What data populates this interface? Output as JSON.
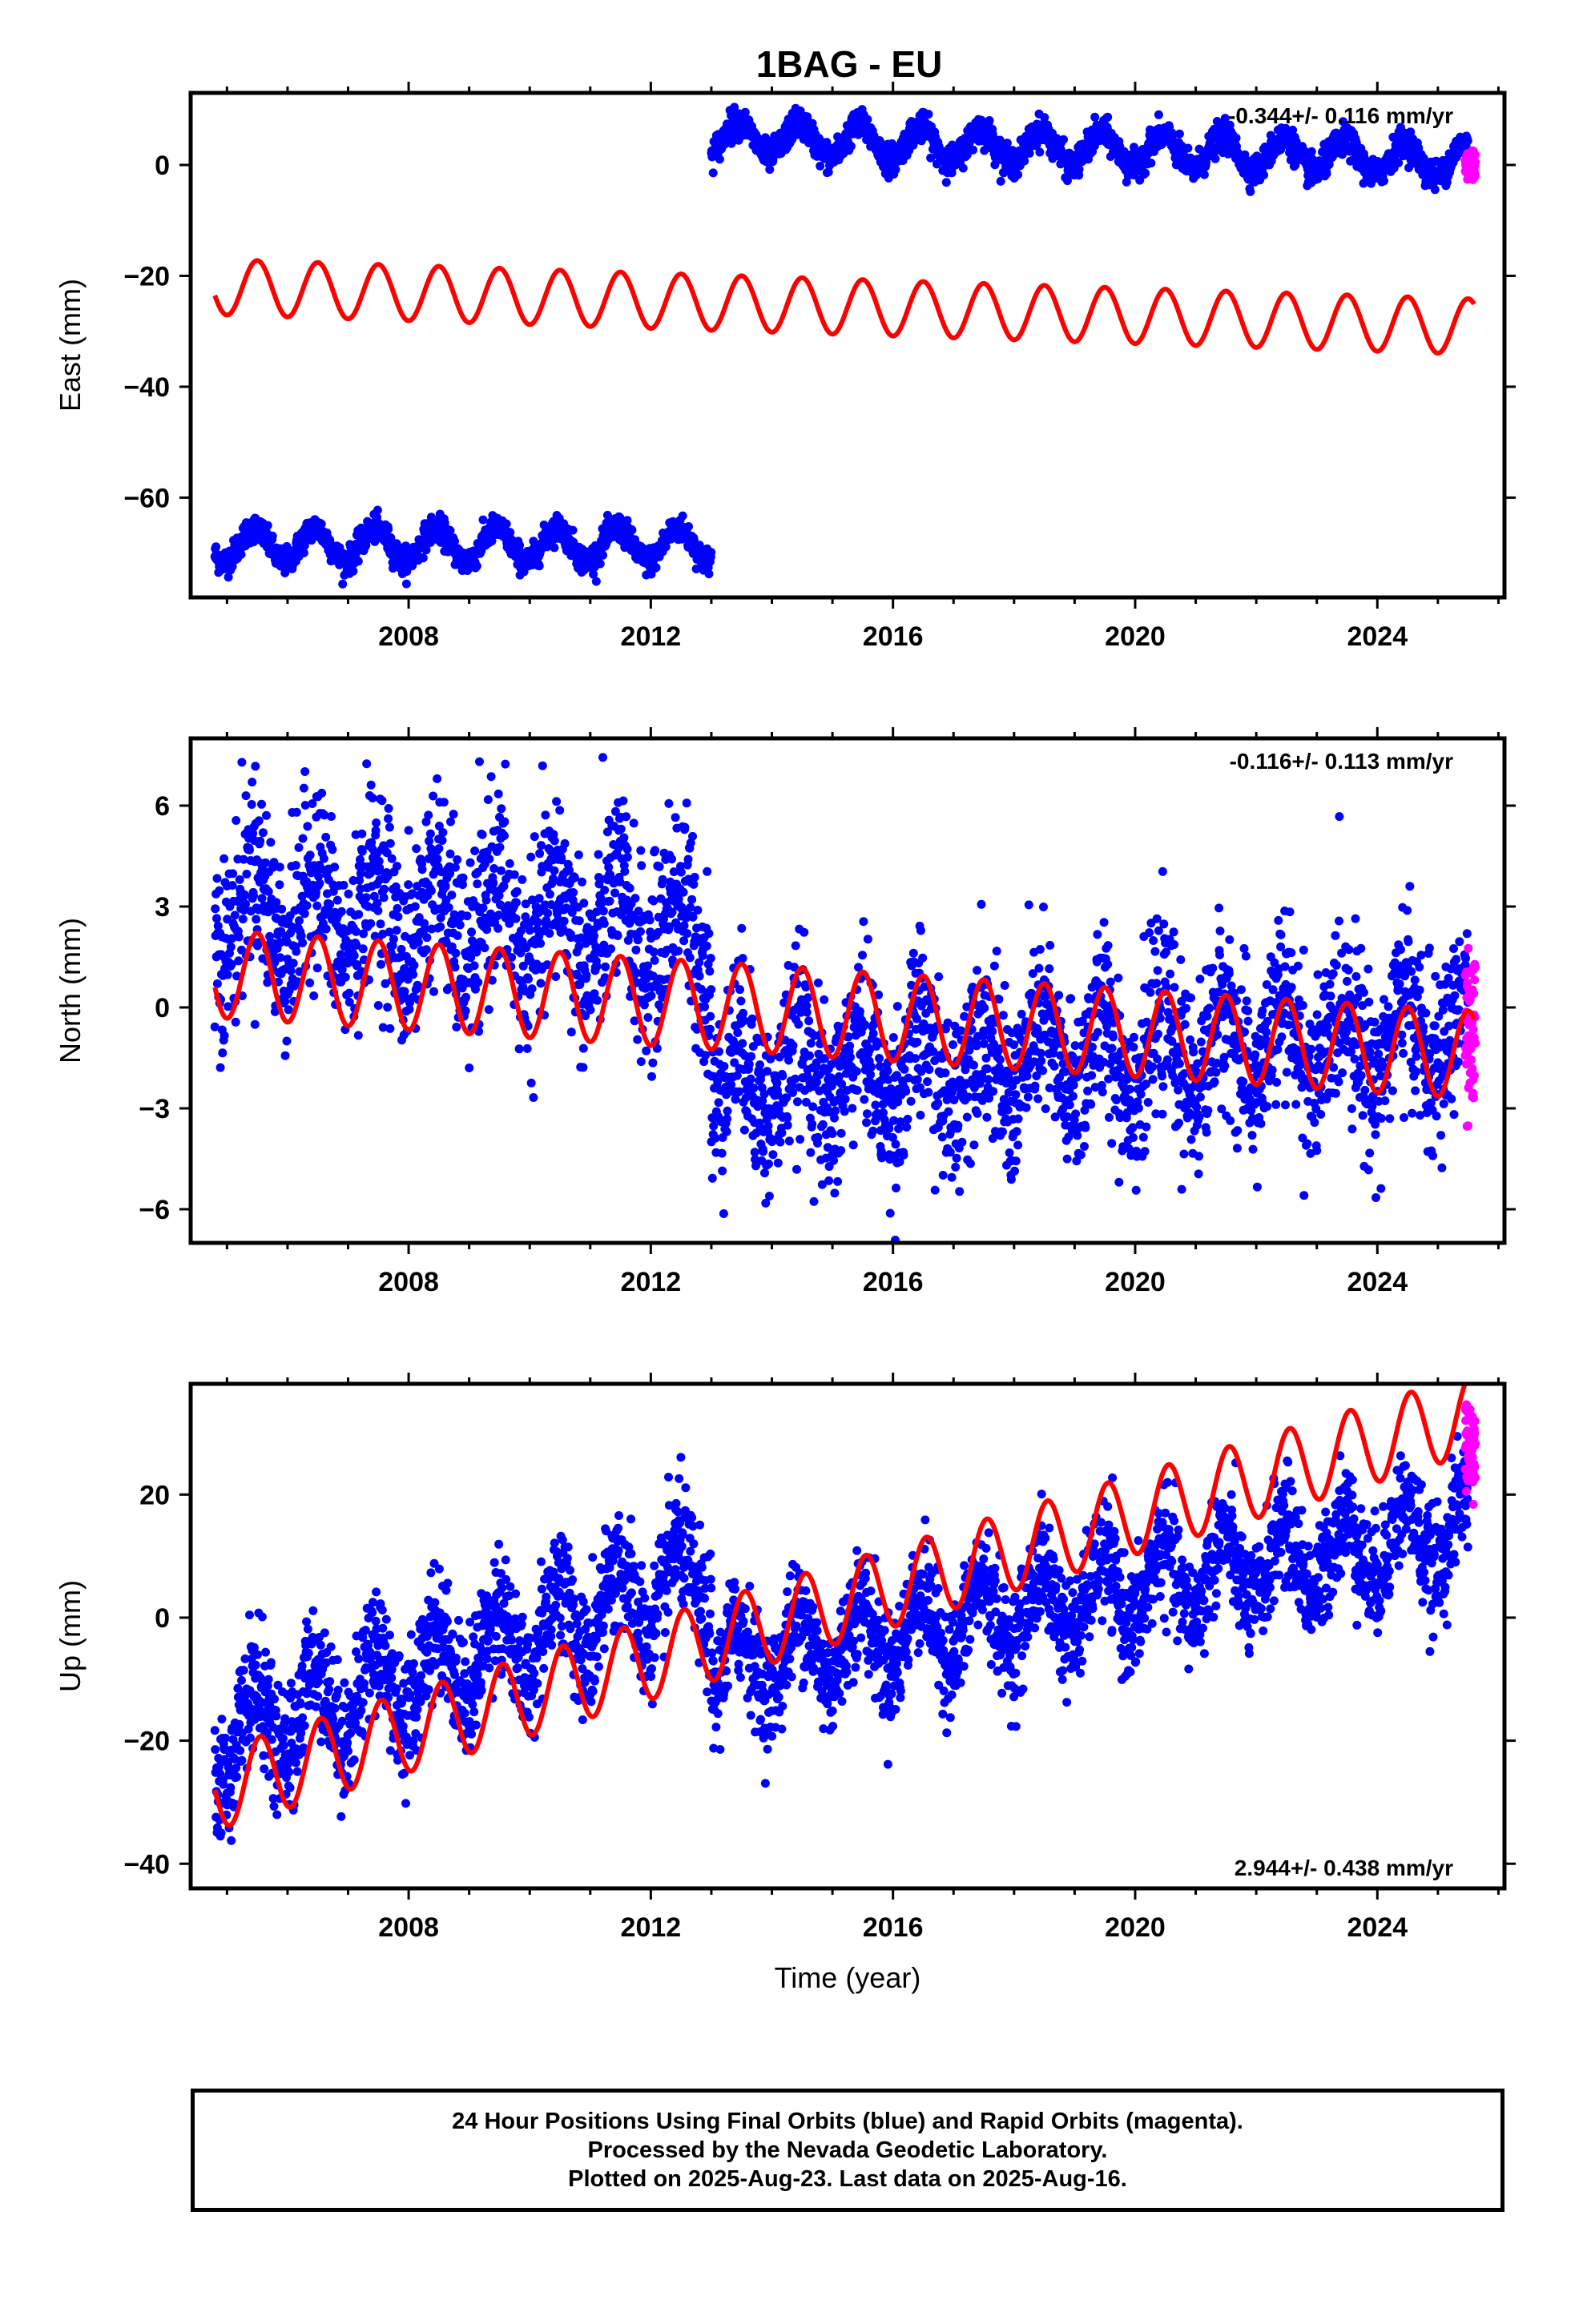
{
  "title": "1BAG - EU",
  "colors": {
    "final": "#0000ff",
    "rapid": "#ff00ff",
    "model": "#ff0000"
  },
  "caption": {
    "line1": "24 Hour Positions Using Final Orbits (blue) and Rapid Orbits (magenta).",
    "line2": "Processed by the Nevada Geodetic Laboratory.",
    "line3": "Plotted on 2025-Aug-23. Last data on 2025-Aug-16."
  },
  "chart_data": [
    {
      "type": "scatter",
      "ylabel": "East (mm)",
      "xlim": [
        2004.4,
        2026.1
      ],
      "ylim": [
        -78,
        13
      ],
      "yticks": [
        0,
        -20,
        -40,
        -60
      ],
      "yticklabels": [
        "0",
        "−20",
        "−40",
        "−60"
      ],
      "xticks": [
        2008,
        2012,
        2016,
        2020,
        2024
      ],
      "xticklabels": [
        "2008",
        "2012",
        "2016",
        "2020",
        "2024"
      ],
      "rate": "-0.344+/- 0.116 mm/yr",
      "rate_position": "top-right",
      "series": [
        {
          "role": "final orbits",
          "color": "blue",
          "segments": [
            {
              "start": 2004.8,
              "end": 2013.0,
              "offset": -68.5,
              "amplitude": 3.0,
              "noise": 1.2,
              "slope": 0.0
            },
            {
              "start": 2013.0,
              "end": 2025.5,
              "offset": 5.0,
              "amplitude": 3.0,
              "noise": 1.3,
              "slope": -0.34
            }
          ]
        },
        {
          "role": "rapid orbits",
          "color": "magenta",
          "segments": [
            {
              "start": 2025.45,
              "end": 2025.62,
              "offset": 0.0,
              "amplitude": 0.0,
              "noise": 1.5,
              "slope": 0.0
            }
          ]
        },
        {
          "role": "model",
          "color": "red",
          "x_start": 2004.8,
          "x_end": 2025.6,
          "offset": -22.0,
          "slope": -0.344,
          "amplitude": 5.0,
          "phase": 0.25
        }
      ]
    },
    {
      "type": "scatter",
      "ylabel": "North (mm)",
      "xlim": [
        2004.4,
        2026.1
      ],
      "ylim": [
        -7,
        8
      ],
      "yticks": [
        6,
        3,
        0,
        -3,
        -6
      ],
      "yticklabels": [
        "6",
        "3",
        "0",
        "−3",
        "−6"
      ],
      "xticks": [
        2008,
        2012,
        2016,
        2020,
        2024
      ],
      "xticklabels": [
        "2008",
        "2012",
        "2016",
        "2020",
        "2024"
      ],
      "rate": "-0.116+/- 0.113 mm/yr",
      "rate_position": "top-right",
      "series": [
        {
          "role": "final orbits",
          "color": "blue",
          "segments": [
            {
              "start": 2004.8,
              "end": 2013.0,
              "offset": 3.0,
              "amplitude": 1.3,
              "noise": 1.4,
              "slope": -0.1
            },
            {
              "start": 2013.0,
              "end": 2025.5,
              "offset": -2.2,
              "amplitude": 1.2,
              "noise": 1.3,
              "slope": 0.12
            }
          ]
        },
        {
          "role": "rapid orbits",
          "color": "magenta",
          "segments": [
            {
              "start": 2025.45,
              "end": 2025.62,
              "offset": -1.0,
              "amplitude": 0.0,
              "noise": 1.2,
              "slope": 0.0
            }
          ]
        },
        {
          "role": "model",
          "color": "red",
          "x_start": 2004.8,
          "x_end": 2025.6,
          "offset": 1.0,
          "slope": -0.116,
          "amplitude": 1.3,
          "phase": 0.25
        }
      ]
    },
    {
      "type": "scatter",
      "ylabel": "Up (mm)",
      "xlabel": "Time (year)",
      "xlim": [
        2004.4,
        2026.1
      ],
      "ylim": [
        -44,
        38
      ],
      "yticks": [
        20,
        0,
        -20,
        -40
      ],
      "yticklabels": [
        "20",
        "0",
        "−20",
        "−40"
      ],
      "xticks": [
        2008,
        2012,
        2016,
        2020,
        2024
      ],
      "xticklabels": [
        "2008",
        "2012",
        "2016",
        "2020",
        "2024"
      ],
      "rate": "2.944+/- 0.438 mm/yr",
      "rate_position": "bottom-right",
      "series": [
        {
          "role": "final orbits",
          "color": "blue",
          "segments": [
            {
              "start": 2004.8,
              "end": 2013.0,
              "offset": -20.0,
              "amplitude": 7.0,
              "noise": 5.0,
              "slope": 3.3
            },
            {
              "start": 2013.0,
              "end": 2025.5,
              "offset": -8.0,
              "amplitude": 6.0,
              "noise": 4.5,
              "slope": 1.8
            }
          ]
        },
        {
          "role": "rapid orbits",
          "color": "magenta",
          "segments": [
            {
              "start": 2025.45,
              "end": 2025.62,
              "offset": 28.0,
              "amplitude": 0.0,
              "noise": 4.0,
              "slope": 0.0
            }
          ]
        },
        {
          "role": "model",
          "color": "red",
          "x_start": 2004.8,
          "x_end": 2025.6,
          "offset": -28.0,
          "slope": 2.944,
          "amplitude": 6.5,
          "phase": 0.3
        }
      ]
    }
  ]
}
